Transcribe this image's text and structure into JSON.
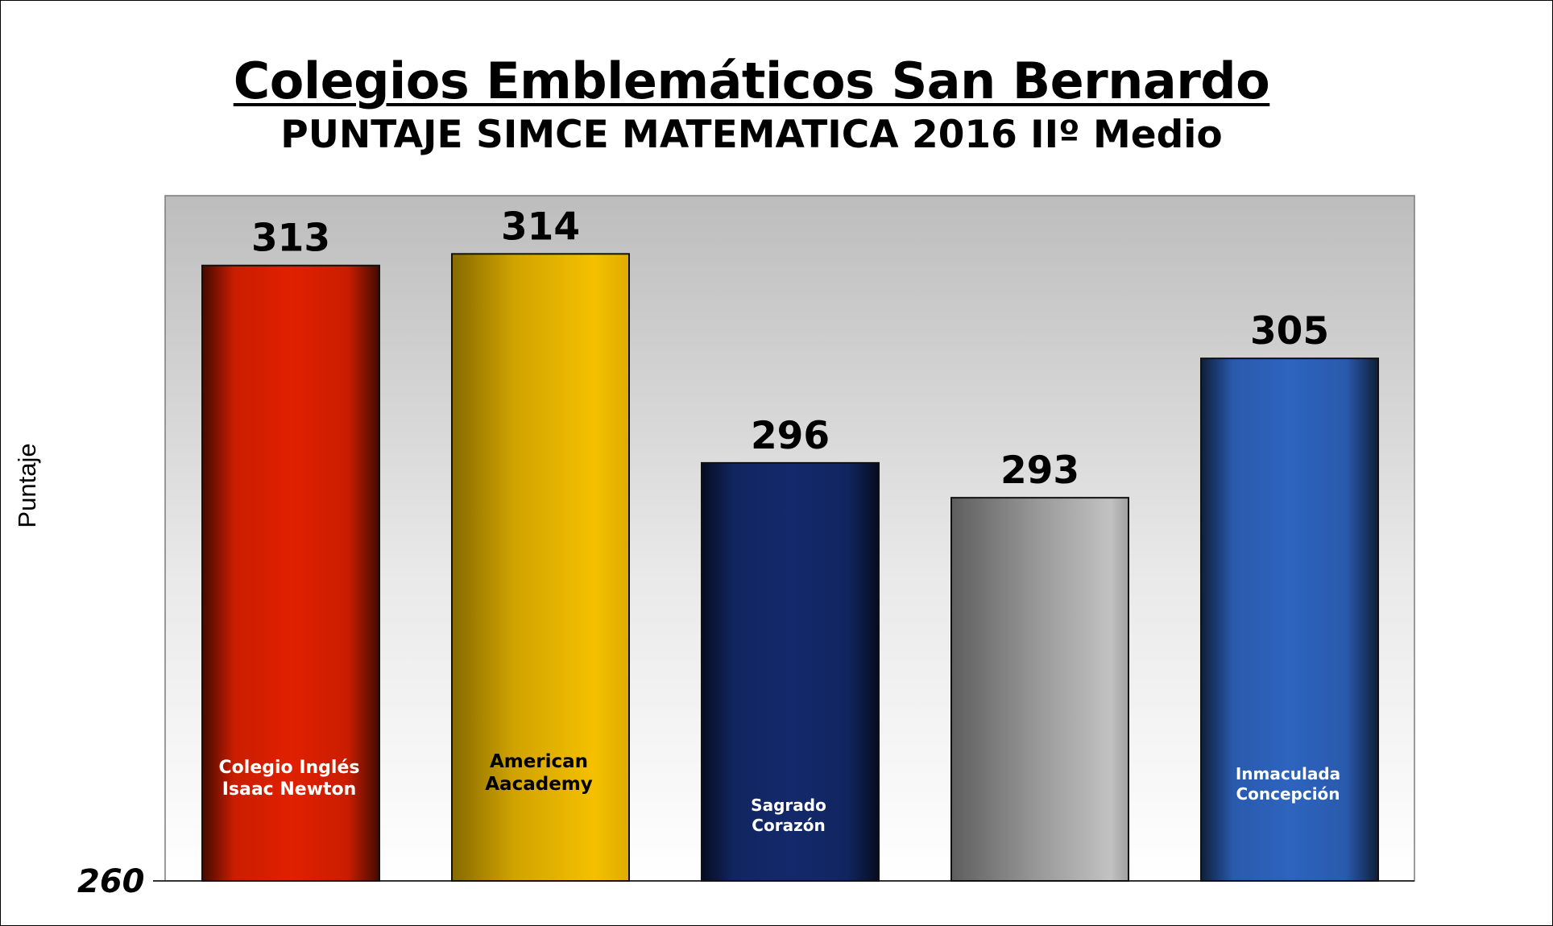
{
  "chart_data": {
    "type": "bar",
    "title": "Colegios Emblemáticos San Bernardo",
    "subtitle": "PUNTAJE SIMCE MATEMATICA 2016 IIº Medio",
    "ylabel": "Puntaje",
    "ymin_label": "260",
    "ylim": [
      260,
      320
    ],
    "legend": "none",
    "grid": false,
    "categories": [
      [
        "Colegio Inglés",
        "Isaac Newton"
      ],
      [
        "American",
        "Aacademy"
      ],
      [
        "Sagrado",
        "Corazón"
      ],
      [],
      [
        "Inmaculada",
        "Concepción"
      ]
    ],
    "values": [
      313,
      314,
      296,
      293,
      305
    ],
    "colors": [
      "#e02000",
      "#f5c000",
      "#13296b",
      "#a8a8a8",
      "#2e64bf"
    ]
  }
}
